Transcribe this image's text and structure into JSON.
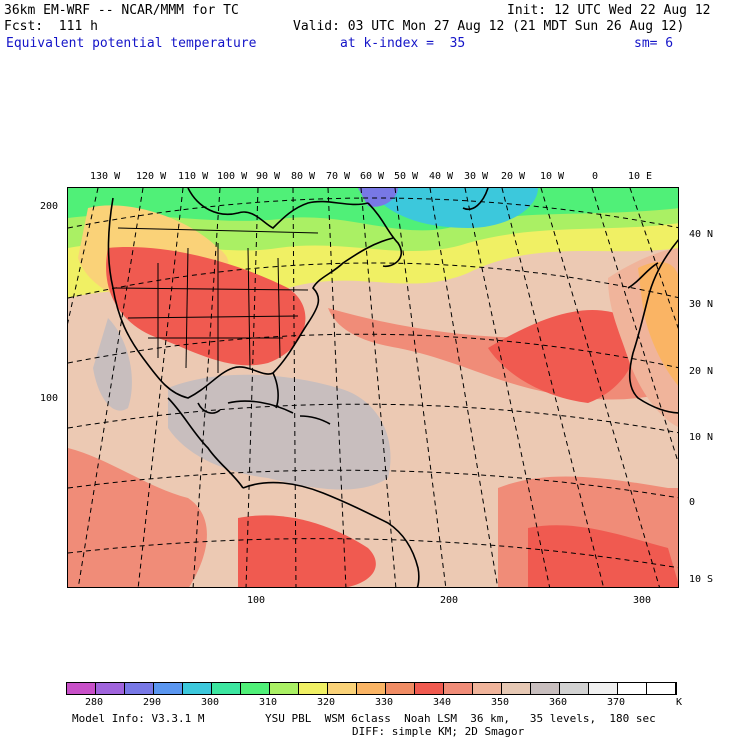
{
  "header": {
    "line1_left": "36km EM-WRF -- NCAR/MMM for TC",
    "line1_right": "Init: 12 UTC Wed 22 Aug 12",
    "line2_left": "Fcst:  111 h",
    "line2_right": "Valid: 03 UTC Mon 27 Aug 12 (21 MDT Sun 26 Aug 12)",
    "field_name": "Equivalent potential temperature",
    "level": "at k-index =  35",
    "smoothing": "sm= 6"
  },
  "map": {
    "lon_labels": [
      "130 W",
      "120 W",
      "110 W",
      "100 W",
      "90 W",
      "80 W",
      "70 W",
      "60 W",
      "50 W",
      "40 W",
      "30 W",
      "20 W",
      "10 W",
      "0",
      "10 E"
    ],
    "lat_labels": [
      "40 N",
      "30 N",
      "20 N",
      "10 N",
      "0",
      "10 S"
    ],
    "left_ticks": [
      "200",
      "100"
    ],
    "bottom_ticks": [
      "100",
      "200",
      "300"
    ]
  },
  "colorbar": {
    "colors": [
      "#c850c8",
      "#a064dc",
      "#7878e6",
      "#5a96f0",
      "#3cc8dc",
      "#3ce6a0",
      "#50f078",
      "#aaf064",
      "#f0f064",
      "#fad278",
      "#fab464",
      "#f08c64",
      "#f05a50",
      "#f08c78",
      "#f0b49b",
      "#e6c8b4",
      "#c8bebe",
      "#d2d2d2",
      "#f0f0f0",
      "#ffffff",
      "#ffffff"
    ],
    "labels": [
      "280",
      "290",
      "300",
      "310",
      "320",
      "330",
      "340",
      "350",
      "360",
      "370",
      "K"
    ]
  },
  "footer": {
    "model_info": "Model Info: V3.3.1 M",
    "physics": "YSU PBL  WSM 6class  Noah LSM  36 km,   35 levels,  180 sec",
    "diffusion": "DIFF: simple KM; 2D Smagor"
  }
}
